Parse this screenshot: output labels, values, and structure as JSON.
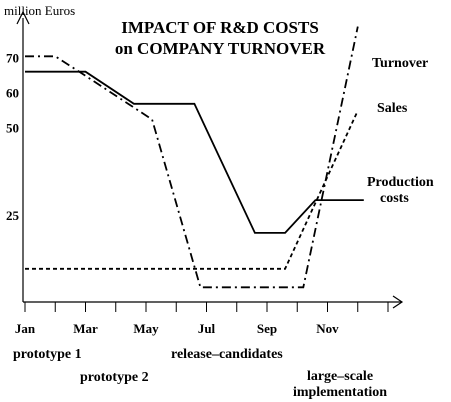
{
  "chart_data": {
    "type": "line",
    "title_lines": [
      "IMPACT OF R&D COSTS",
      "on COMPANY TURNOVER"
    ],
    "ylabel": "million Euros",
    "ylim": [
      0,
      90
    ],
    "xlim": [
      0,
      12.5
    ],
    "yticks": [
      {
        "value": 70,
        "label": "70"
      },
      {
        "value": 60,
        "label": "60"
      },
      {
        "value": 50,
        "label": "50"
      },
      {
        "value": 25,
        "label": "25"
      }
    ],
    "xticks": [
      {
        "x": 0,
        "label": "Jan"
      },
      {
        "x": 2,
        "label": "Mar"
      },
      {
        "x": 4,
        "label": "May"
      },
      {
        "x": 6,
        "label": "Jul"
      },
      {
        "x": 8,
        "label": "Sep"
      },
      {
        "x": 10,
        "label": "Nov"
      }
    ],
    "minor_ticks": [
      1,
      3,
      5,
      7,
      9,
      11,
      12
    ],
    "series": [
      {
        "name": "Production costs",
        "label_lines": [
          "Production",
          "costs"
        ],
        "dash": "solid",
        "x": [
          0,
          2,
          3.6,
          5.6,
          7.6,
          8.6,
          9.6,
          11.2
        ],
        "y": [
          66,
          66,
          56.8,
          56.8,
          19.8,
          19.8,
          29.2,
          29.2
        ]
      },
      {
        "name": "Sales",
        "label_lines": [
          "Sales"
        ],
        "dash": "dotted",
        "x": [
          0,
          3,
          8.6,
          11
        ],
        "y": [
          9.5,
          9.5,
          9.5,
          54.8
        ]
      },
      {
        "name": "Turnover",
        "label_lines": [
          "Turnover"
        ],
        "dash": "dashdot",
        "x": [
          0,
          1.0,
          2.0,
          4.2,
          5.8,
          6.2,
          9.2,
          11.0
        ],
        "y": [
          70.4,
          70.4,
          64.8,
          52.3,
          4.2,
          4.2,
          4.2,
          78.9
        ]
      }
    ],
    "milestones": [
      {
        "label": "prototype 1"
      },
      {
        "label": "prototype 2"
      },
      {
        "label": "release–candidates"
      },
      {
        "label": "large–scale",
        "label2": "implementation"
      }
    ],
    "grid": false,
    "legend": "inline labels at line ends"
  }
}
